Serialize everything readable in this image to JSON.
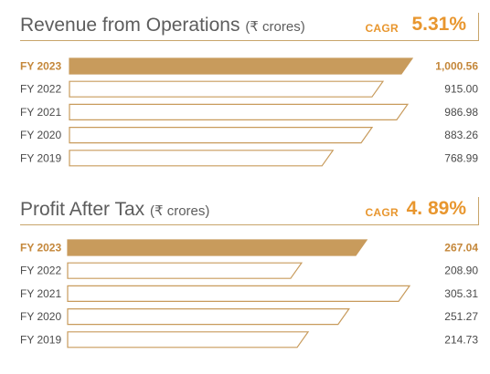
{
  "chart_data": [
    {
      "type": "bar",
      "title": "Revenue from Operations",
      "subtitle": "(₹ crores)",
      "cagr_label": "CAGR",
      "cagr_value": "5.31%",
      "categories": [
        "FY 2023",
        "FY 2022",
        "FY 2021",
        "FY 2020",
        "FY 2019"
      ],
      "values": [
        1000.56,
        915.0,
        986.98,
        883.26,
        768.99
      ],
      "value_labels": [
        "1,000.56",
        "915.00",
        "986.98",
        "883.26",
        "768.99"
      ],
      "highlight": "FY 2023",
      "orientation": "horizontal"
    },
    {
      "type": "bar",
      "title": "Profit After Tax",
      "subtitle": "(₹ crores)",
      "cagr_label": "CAGR",
      "cagr_value": "4. 89%",
      "categories": [
        "FY 2023",
        "FY 2022",
        "FY 2021",
        "FY 2020",
        "FY 2019"
      ],
      "values": [
        267.04,
        208.9,
        305.31,
        251.27,
        214.73
      ],
      "value_labels": [
        "267.04",
        "208.90",
        "305.31",
        "251.27",
        "214.73"
      ],
      "highlight": "FY 2023",
      "orientation": "horizontal"
    }
  ],
  "colors": {
    "highlight_fill": "#c89b5c",
    "bar_stroke": "#c89b5c",
    "accent": "#e8962e"
  }
}
